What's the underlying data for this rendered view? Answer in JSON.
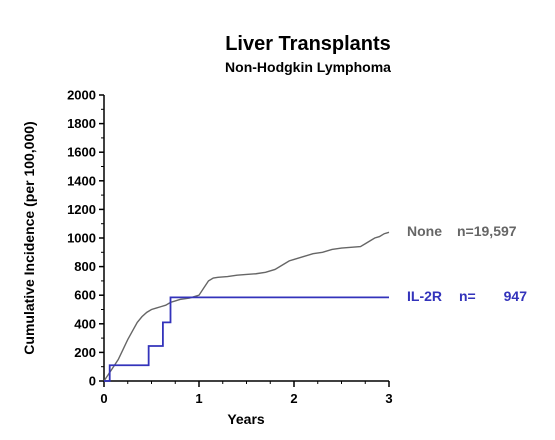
{
  "chart_data": {
    "type": "line",
    "title": "Liver Transplants",
    "subtitle": "Non-Hodgkin Lymphoma",
    "xlabel": "Years",
    "ylabel": "Cumulative Incidence (per 100,000)",
    "xlim": [
      0,
      3
    ],
    "ylim": [
      0,
      2000
    ],
    "x_ticks": [
      "0",
      "1",
      "2",
      "3"
    ],
    "y_ticks": [
      "0",
      "200",
      "400",
      "600",
      "800",
      "1000",
      "1200",
      "1400",
      "1600",
      "1800",
      "2000"
    ],
    "grid": false,
    "series": [
      {
        "name": "None",
        "legend_label": "None",
        "legend_n": "n=19,597",
        "color": "#666666",
        "step": false,
        "x": [
          0,
          0.05,
          0.1,
          0.15,
          0.2,
          0.25,
          0.3,
          0.35,
          0.4,
          0.45,
          0.5,
          0.55,
          0.6,
          0.65,
          0.7,
          0.75,
          0.8,
          0.9,
          1.0,
          1.05,
          1.1,
          1.15,
          1.2,
          1.3,
          1.4,
          1.5,
          1.6,
          1.7,
          1.8,
          1.9,
          1.95,
          2.0,
          2.1,
          2.2,
          2.3,
          2.4,
          2.5,
          2.6,
          2.7,
          2.75,
          2.8,
          2.85,
          2.9,
          2.95,
          3.0
        ],
        "y": [
          0,
          50,
          100,
          150,
          220,
          290,
          350,
          410,
          450,
          480,
          500,
          510,
          520,
          530,
          550,
          560,
          570,
          580,
          600,
          650,
          700,
          720,
          725,
          730,
          740,
          745,
          750,
          760,
          780,
          820,
          840,
          850,
          870,
          890,
          900,
          920,
          930,
          935,
          940,
          960,
          980,
          1000,
          1010,
          1030,
          1040
        ]
      },
      {
        "name": "IL-2R",
        "legend_label": "IL-2R",
        "legend_n_prefix": "n=",
        "legend_n_value": "947",
        "color": "#3333bb",
        "step": true,
        "x": [
          0,
          0.06,
          0.47,
          0.62,
          0.7,
          3.0
        ],
        "y": [
          0,
          110,
          245,
          410,
          585,
          585
        ]
      }
    ]
  }
}
